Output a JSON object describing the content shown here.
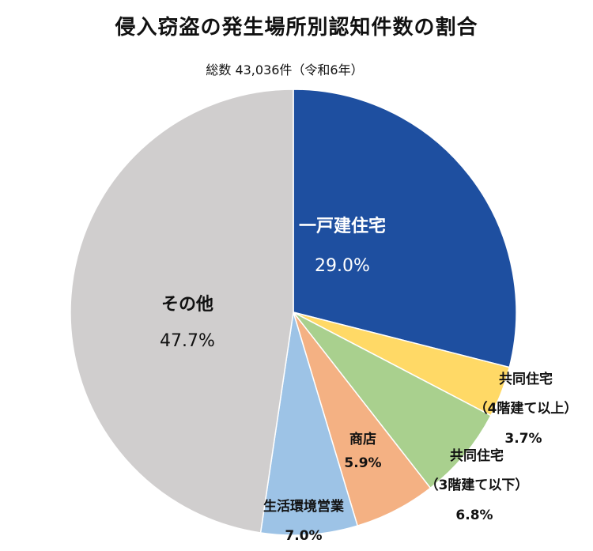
{
  "chart_data": {
    "type": "pie",
    "title": "侵入窃盗の発生場所別認知件数の割合",
    "subtitle": "総数 43,036件（令和6年）",
    "slices": [
      {
        "name": "一戸建住宅",
        "value": 29.0,
        "label": "29.0%",
        "color": "#1E4FA0"
      },
      {
        "name": "共同住宅",
        "name2": "（4階建て以上）",
        "value": 3.7,
        "label": "3.7%",
        "color": "#FFD966"
      },
      {
        "name": "共同住宅",
        "name2": "（3階建て以下）",
        "value": 6.8,
        "label": "6.8%",
        "color": "#A9D08E"
      },
      {
        "name": "商店",
        "value": 5.9,
        "label": "5.9%",
        "color": "#F4B183"
      },
      {
        "name": "生活環境営業",
        "value": 7.0,
        "label": "7.0%",
        "color": "#9DC3E6"
      },
      {
        "name": "その他",
        "value": 47.7,
        "label": "47.7%",
        "color": "#D0CECE"
      }
    ]
  }
}
